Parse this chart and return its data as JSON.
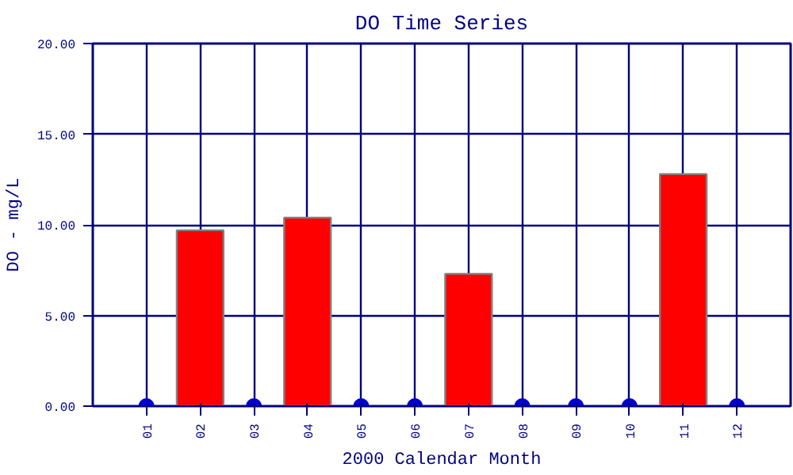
{
  "chart_data": {
    "type": "bar",
    "title": "DO Time Series",
    "xlabel": "2000 Calendar Month",
    "ylabel": "DO - mg/L",
    "categories": [
      "01",
      "02",
      "03",
      "04",
      "05",
      "06",
      "07",
      "08",
      "09",
      "10",
      "11",
      "12"
    ],
    "series": [
      {
        "color": "#ff0000",
        "values": [
          null,
          9.7,
          null,
          10.4,
          null,
          null,
          7.3,
          null,
          null,
          null,
          12.8,
          null
        ]
      },
      {
        "type": "scatter",
        "color": "#0000cc",
        "x": [
          "01",
          "03",
          "05",
          "06",
          "08",
          "09",
          "10",
          "12"
        ],
        "values": [
          0,
          0,
          0,
          0,
          0,
          0,
          0,
          0
        ]
      }
    ],
    "ylim": [
      0,
      20
    ],
    "yticks": [
      {
        "value": 0,
        "label": "0.00"
      },
      {
        "value": 5,
        "label": "5.00"
      },
      {
        "value": 10,
        "label": "10.00"
      },
      {
        "value": 15,
        "label": "15.00"
      },
      {
        "value": 20,
        "label": "20.00"
      }
    ],
    "grid": true,
    "marker": "circle"
  }
}
